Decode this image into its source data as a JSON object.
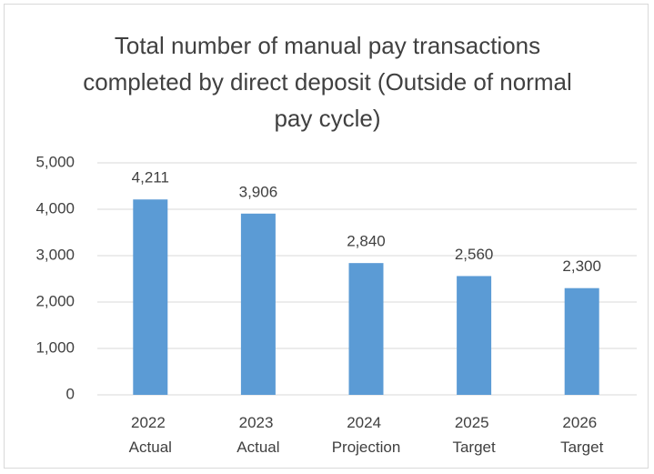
{
  "chart_data": {
    "type": "bar",
    "title": "Total number of manual pay transactions completed by direct deposit (Outside of normal pay cycle)",
    "categories": [
      "2022 Actual",
      "2023 Actual",
      "2024 Projection",
      "2025 Target",
      "2026 Target"
    ],
    "values": [
      4211,
      3906,
      2840,
      2560,
      2300
    ],
    "value_labels": [
      "4,211",
      "3,906",
      "2,840",
      "2,560",
      "2,300"
    ],
    "color": "#5b9bd5",
    "ylim": [
      0,
      5000
    ],
    "yticks": [
      0,
      {
        "value": 1000,
        "label": "1,000"
      },
      {
        "value": 2000,
        "label": "2,000"
      },
      {
        "value": 3000,
        "label": "3,000"
      },
      {
        "value": 4000,
        "label": "4,000"
      },
      {
        "value": 5000,
        "label": "5,000"
      }
    ],
    "grid": true
  }
}
